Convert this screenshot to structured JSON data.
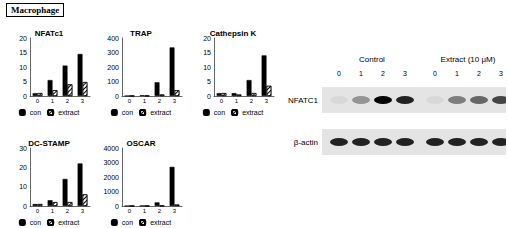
{
  "title": "Macrophage",
  "chart_data": [
    {
      "type": "bar",
      "title": "NFATc1",
      "categories": [
        "0",
        "1",
        "2",
        "3"
      ],
      "series": [
        {
          "name": "con",
          "color": "#000000",
          "values": [
            1,
            5.5,
            10.5,
            14.5
          ]
        },
        {
          "name": "extract",
          "color": "#ffffff",
          "values": [
            1,
            2,
            4,
            4.8
          ]
        }
      ],
      "ylim": [
        0,
        20
      ],
      "yticks": [
        0,
        5,
        10,
        15,
        20
      ],
      "grid": false,
      "legend": "bottom"
    },
    {
      "type": "bar",
      "title": "TRAP",
      "categories": [
        "0",
        "1",
        "2",
        "3"
      ],
      "series": [
        {
          "name": "con",
          "color": "#000000",
          "values": [
            1,
            5,
            95,
            335
          ]
        },
        {
          "name": "extract",
          "color": "#ffffff",
          "values": [
            1,
            2,
            10,
            40
          ]
        }
      ],
      "ylim": [
        0,
        400
      ],
      "yticks": [
        0,
        100,
        200,
        300,
        400
      ],
      "grid": false,
      "legend": "bottom"
    },
    {
      "type": "bar",
      "title": "Cathepsin K",
      "categories": [
        "0",
        "1",
        "2",
        "3"
      ],
      "series": [
        {
          "name": "con",
          "color": "#000000",
          "values": [
            1,
            1,
            5.5,
            14
          ]
        },
        {
          "name": "extract",
          "color": "#ffffff",
          "values": [
            1,
            0.5,
            1,
            3.5
          ]
        }
      ],
      "ylim": [
        0,
        20
      ],
      "yticks": [
        0,
        5,
        10,
        15,
        20
      ],
      "grid": false,
      "legend": "bottom"
    },
    {
      "type": "bar",
      "title": "DC-STAMP",
      "categories": [
        "0",
        "1",
        "2",
        "3"
      ],
      "series": [
        {
          "name": "con",
          "color": "#000000",
          "values": [
            1,
            3,
            14,
            22
          ]
        },
        {
          "name": "extract",
          "color": "#ffffff",
          "values": [
            1,
            2,
            2,
            6
          ]
        }
      ],
      "ylim": [
        0,
        30
      ],
      "yticks": [
        0,
        10,
        20,
        30
      ],
      "grid": false,
      "legend": "bottom"
    },
    {
      "type": "bar",
      "title": "OSCAR",
      "categories": [
        "0",
        "1",
        "2",
        "3"
      ],
      "series": [
        {
          "name": "con",
          "color": "#000000",
          "values": [
            5,
            20,
            250,
            2700
          ]
        },
        {
          "name": "extract",
          "color": "#ffffff",
          "values": [
            5,
            5,
            20,
            100
          ]
        }
      ],
      "ylim": [
        0,
        4000
      ],
      "yticks": [
        0,
        1000,
        2000,
        3000,
        4000
      ],
      "grid": false,
      "legend": "bottom"
    }
  ],
  "blot": {
    "groups": [
      {
        "label": "Control",
        "lanes": [
          "0",
          "1",
          "2",
          "3"
        ]
      },
      {
        "label": "Extract (10 μM)",
        "lanes": [
          "0",
          "1",
          "2",
          "3"
        ]
      }
    ],
    "rows": [
      "NFATC1",
      "β-actin"
    ]
  }
}
